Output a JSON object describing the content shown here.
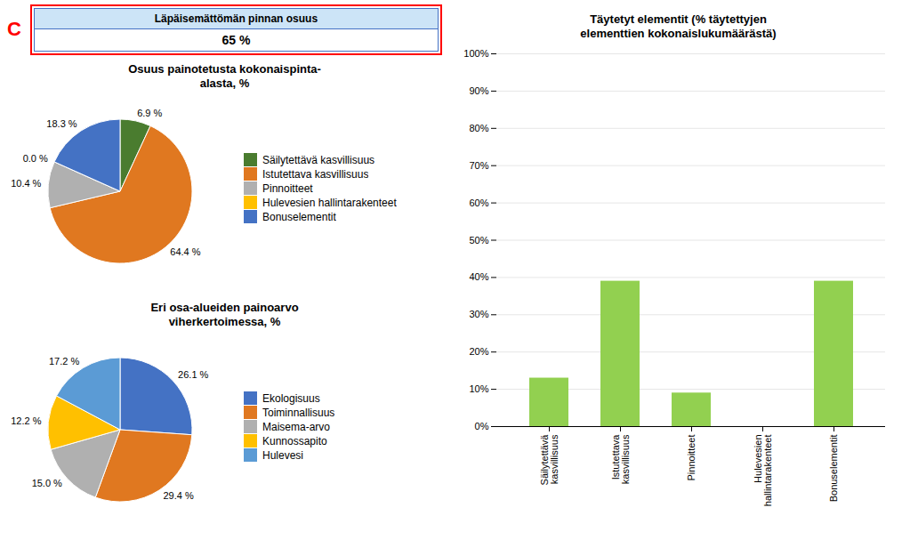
{
  "chart_data": [
    {
      "type": "kpi",
      "title": "Läpäisemättömän pinnan osuus",
      "values": [
        65
      ],
      "value_labels": [
        "65 %"
      ],
      "annotations": [
        "C"
      ]
    },
    {
      "type": "pie",
      "title": "Osuus painotetusta kokonaispinta-\nalasta, %",
      "categories": [
        "Säilytettävä kasvillisuus",
        "Istutettava kasvillisuus",
        "Pinnoitteet",
        "Hulevesien hallintarakenteet",
        "Bonuselementit"
      ],
      "values": [
        6.9,
        64.4,
        10.4,
        0.0,
        18.3
      ],
      "value_labels": [
        "6.9 %",
        "64.4 %",
        "10.4 %",
        "0.0 %",
        "18.3 %"
      ],
      "colors": [
        "#4a7c2f",
        "#e07820",
        "#b0b0b0",
        "#ffc000",
        "#4472c4"
      ],
      "data_labels": true,
      "legend": "right"
    },
    {
      "type": "pie",
      "title": "Eri osa-alueiden painoarvo\nviherkertoimessa, %",
      "categories": [
        "Ekologisuus",
        "Toiminnallisuus",
        "Maisema-arvo",
        "Kunnossapito",
        "Hulevesi"
      ],
      "values": [
        26.1,
        29.4,
        15.0,
        12.2,
        17.2
      ],
      "value_labels": [
        "26.1 %",
        "29.4 %",
        "15.0 %",
        "12.2 %",
        "17.2 %"
      ],
      "colors": [
        "#4472c4",
        "#e07820",
        "#b0b0b0",
        "#ffc000",
        "#5b9bd5"
      ],
      "data_labels": true,
      "legend": "right"
    },
    {
      "type": "bar",
      "title": "Täytetyt elementit (% täytettyjen\nelementtien kokonaislukumäärästä)",
      "categories": [
        "Säilytettävä\nkasvillisuus",
        "Istutettava\nkasvillisuus",
        "Pinnoitteet",
        "Hulevesien\nhallintarakenteet",
        "Bonuselementit"
      ],
      "values": [
        13,
        39,
        9,
        0,
        39
      ],
      "color": "#92d050",
      "ylim": [
        0,
        100
      ],
      "yticks": [
        {
          "value": 0,
          "label": "0%"
        },
        {
          "value": 10,
          "label": "10%"
        },
        {
          "value": 20,
          "label": "20%"
        },
        {
          "value": 30,
          "label": "30%"
        },
        {
          "value": 40,
          "label": "40%"
        },
        {
          "value": 50,
          "label": "50%"
        },
        {
          "value": 60,
          "label": "60%"
        },
        {
          "value": 70,
          "label": "70%"
        },
        {
          "value": 80,
          "label": "80%"
        },
        {
          "value": 90,
          "label": "90%"
        },
        {
          "value": 100,
          "label": "100%"
        }
      ],
      "grid": true
    }
  ]
}
